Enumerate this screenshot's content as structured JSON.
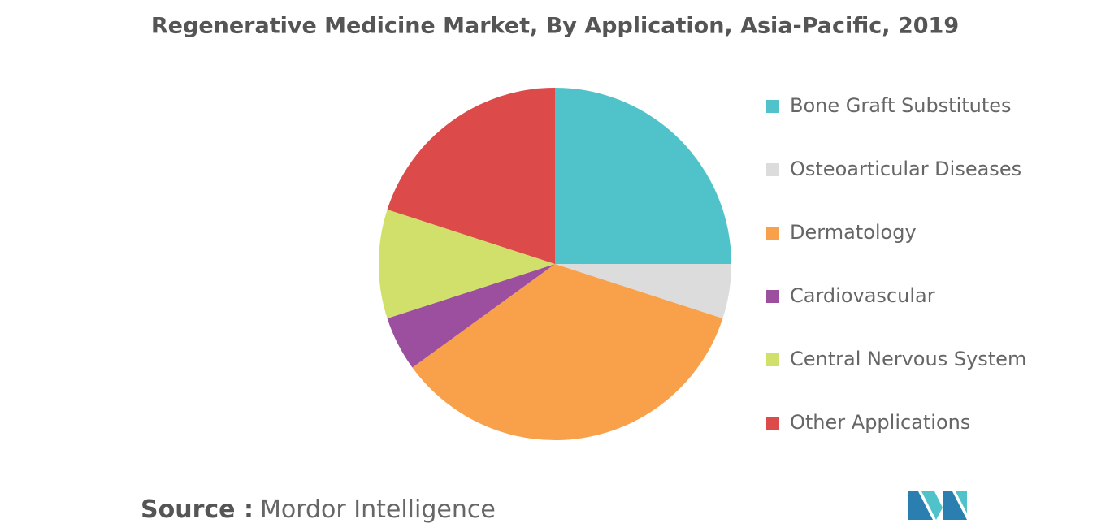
{
  "chart_data": {
    "type": "pie",
    "title": "Regenerative Medicine Market, By Application, Asia-Pacific, 2019",
    "categories": [
      "Bone Graft Substitutes",
      "Osteoarticular Diseases",
      "Dermatology",
      "Cardiovascular",
      "Central Nervous System",
      "Other Applications"
    ],
    "values": [
      25,
      5,
      35,
      5,
      10,
      20
    ],
    "colors": [
      "#4fc3c9",
      "#dcdcdc",
      "#f9a14a",
      "#9c4f9e",
      "#d0e06a",
      "#dc4a4a"
    ],
    "legend": "right"
  },
  "footer": {
    "source_label": "Source :",
    "source": "Mordor Intelligence"
  }
}
